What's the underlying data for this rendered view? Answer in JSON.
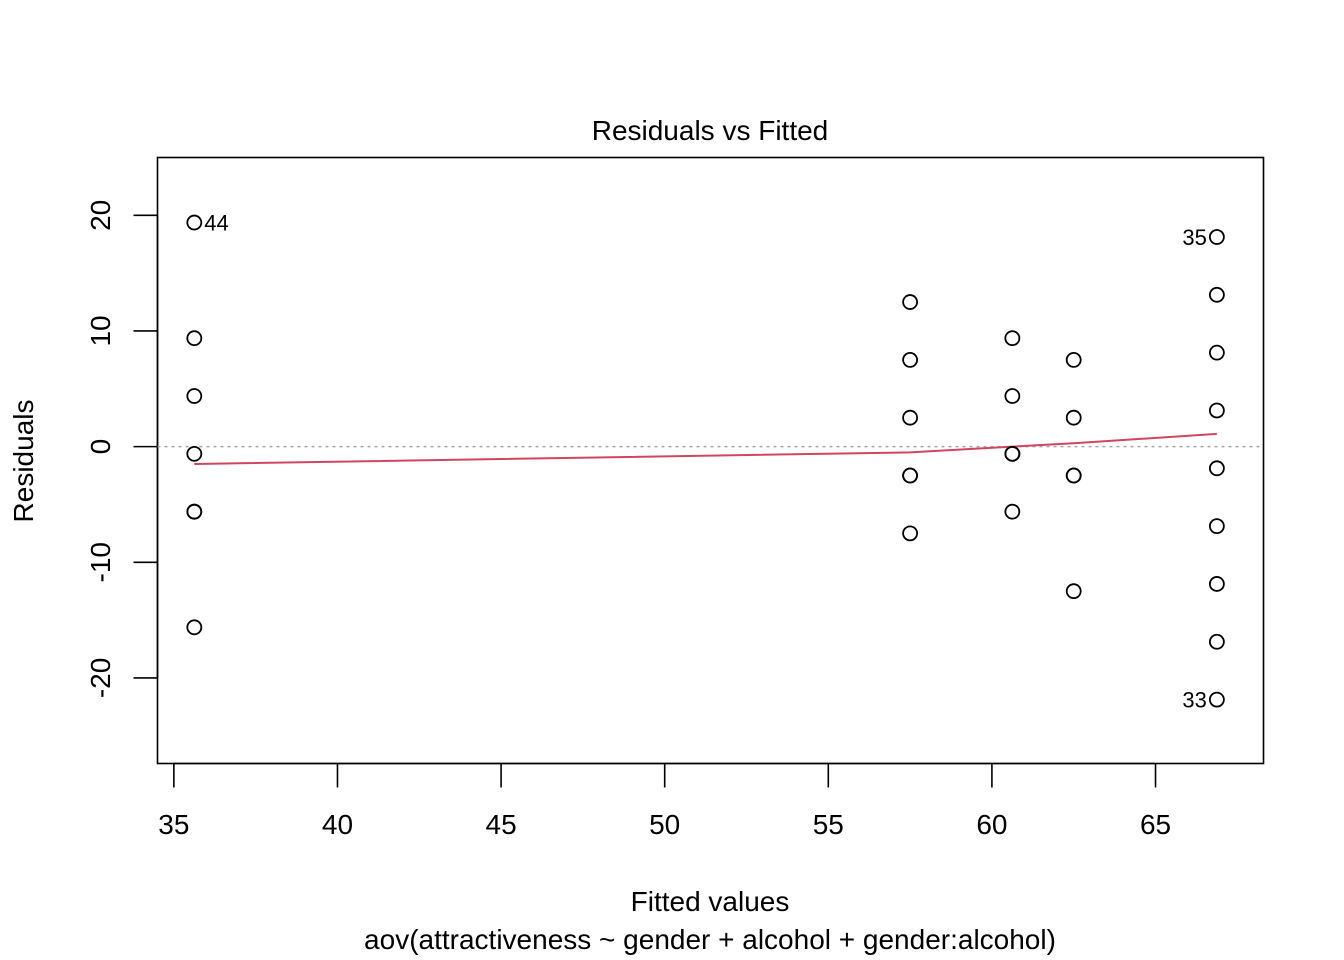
{
  "chart_data": {
    "type": "scatter",
    "title": "Residuals vs Fitted",
    "xlabel": "Fitted values",
    "sublabel": "aov(attractiveness ~ gender + alcohol + gender:alcohol)",
    "ylabel": "Residuals",
    "xlim": [
      34.5,
      68.3
    ],
    "ylim": [
      -27.4,
      25.0
    ],
    "x_ticks": [
      35,
      40,
      45,
      50,
      55,
      60,
      65
    ],
    "y_ticks": [
      -20,
      -10,
      0,
      10,
      20
    ],
    "grid": false,
    "reference_line": {
      "y": 0,
      "style": "dotted",
      "color": "#a6a6a6"
    },
    "smooth_line": {
      "color": "#d1465e",
      "x": [
        35.625,
        57.5,
        60.625,
        62.5,
        66.875
      ],
      "y": [
        -1.5,
        -0.5,
        0.0,
        0.3,
        1.1
      ]
    },
    "points": [
      {
        "x": 35.625,
        "y": 19.375,
        "label": "44"
      },
      {
        "x": 35.625,
        "y": 9.375
      },
      {
        "x": 35.625,
        "y": 4.375
      },
      {
        "x": 35.625,
        "y": -0.625
      },
      {
        "x": 35.625,
        "y": -5.625
      },
      {
        "x": 35.625,
        "y": -5.625
      },
      {
        "x": 35.625,
        "y": -15.625
      },
      {
        "x": 57.5,
        "y": 12.5
      },
      {
        "x": 57.5,
        "y": 7.5
      },
      {
        "x": 57.5,
        "y": 2.5
      },
      {
        "x": 57.5,
        "y": -2.5
      },
      {
        "x": 57.5,
        "y": -2.5
      },
      {
        "x": 57.5,
        "y": -7.5
      },
      {
        "x": 60.625,
        "y": 9.375
      },
      {
        "x": 60.625,
        "y": 4.375
      },
      {
        "x": 60.625,
        "y": -0.625
      },
      {
        "x": 60.625,
        "y": -0.625
      },
      {
        "x": 60.625,
        "y": -5.625
      },
      {
        "x": 62.5,
        "y": 7.5
      },
      {
        "x": 62.5,
        "y": 2.5
      },
      {
        "x": 62.5,
        "y": -2.5
      },
      {
        "x": 62.5,
        "y": -2.5
      },
      {
        "x": 62.5,
        "y": -12.5
      },
      {
        "x": 66.875,
        "y": 18.125,
        "label": "35"
      },
      {
        "x": 66.875,
        "y": 13.125
      },
      {
        "x": 66.875,
        "y": 8.125
      },
      {
        "x": 66.875,
        "y": 3.125
      },
      {
        "x": 66.875,
        "y": -1.875
      },
      {
        "x": 66.875,
        "y": -6.875
      },
      {
        "x": 66.875,
        "y": -11.875
      },
      {
        "x": 66.875,
        "y": -16.875
      },
      {
        "x": 66.875,
        "y": -21.875,
        "label": "33"
      }
    ]
  }
}
